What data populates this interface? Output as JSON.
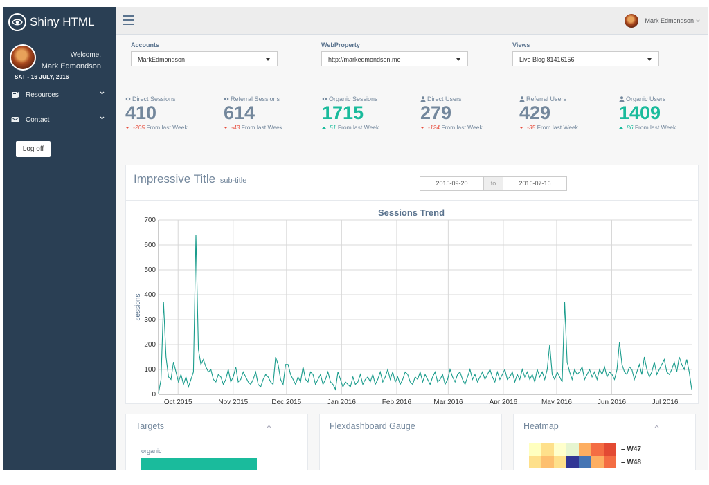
{
  "app": {
    "title": "Shiny HTML"
  },
  "sidebar": {
    "welcome": "Welcome,",
    "user_name": "Mark Edmondson",
    "date": "SAT - 16 JULY, 2016",
    "items": [
      {
        "label": "Resources"
      },
      {
        "label": "Contact"
      }
    ],
    "logoff_label": "Log off"
  },
  "topbar": {
    "user_name": "Mark Edmondson"
  },
  "selectors": {
    "accounts": {
      "label": "Accounts",
      "value": "MarkEdmondson"
    },
    "webproperty": {
      "label": "WebProperty",
      "value": "http://markedmondson.me"
    },
    "views": {
      "label": "Views",
      "value": "Live Blog 81416156"
    }
  },
  "stats": [
    {
      "title": "Direct Sessions",
      "icon": "eye-icon",
      "value": "410",
      "delta": "-205",
      "dir": "down",
      "suffix": "From last Week",
      "highlight": false
    },
    {
      "title": "Referral Sessions",
      "icon": "eye-icon",
      "value": "614",
      "delta": "-43",
      "dir": "down",
      "suffix": "From last Week",
      "highlight": false
    },
    {
      "title": "Organic Sessions",
      "icon": "eye-icon",
      "value": "1715",
      "delta": "51",
      "dir": "up",
      "suffix": "From last Week",
      "highlight": true
    },
    {
      "title": "Direct Users",
      "icon": "user-icon",
      "value": "279",
      "delta": "-124",
      "dir": "down",
      "suffix": "From last Week",
      "highlight": false
    },
    {
      "title": "Referral Users",
      "icon": "user-icon",
      "value": "429",
      "delta": "-35",
      "dir": "down",
      "suffix": "From last Week",
      "highlight": false
    },
    {
      "title": "Organic Users",
      "icon": "user-icon",
      "value": "1409",
      "delta": "86",
      "dir": "up",
      "suffix": "From last Week",
      "highlight": true
    }
  ],
  "panel": {
    "title": "Impressive Title",
    "subtitle": "sub-title",
    "date_from": "2015-09-20",
    "date_to": "2016-07-16",
    "to_label": "to"
  },
  "chart_data": {
    "type": "line",
    "title": "Sessions Trend",
    "xlabel": "",
    "ylabel": "sessions",
    "ylim": [
      0,
      700
    ],
    "yticks": [
      0,
      100,
      200,
      300,
      400,
      500,
      600,
      700
    ],
    "xticks": [
      "Oct 2015",
      "Nov 2015",
      "Dec 2015",
      "Jan 2016",
      "Feb 2016",
      "Mar 2016",
      "Apr 2016",
      "May 2016",
      "Jun 2016",
      "Jul 2016"
    ],
    "start_date": "2015-09-20",
    "end_date": "2016-07-16",
    "line_color": "#1a9c8c",
    "series": [
      {
        "name": "sessions",
        "values": [
          5,
          60,
          370,
          150,
          70,
          60,
          130,
          90,
          50,
          80,
          40,
          70,
          30,
          60,
          90,
          640,
          180,
          120,
          140,
          110,
          90,
          100,
          60,
          50,
          80,
          70,
          40,
          60,
          100,
          50,
          70,
          110,
          50,
          60,
          90,
          70,
          50,
          40,
          60,
          90,
          40,
          30,
          60,
          80,
          70,
          50,
          40,
          150,
          120,
          60,
          40,
          120,
          120,
          80,
          60,
          40,
          70,
          50,
          110,
          60,
          50,
          90,
          80,
          40,
          60,
          80,
          40,
          60,
          90,
          50,
          40,
          20,
          90,
          60,
          30,
          50,
          40,
          30,
          70,
          40,
          50,
          80,
          40,
          60,
          70,
          50,
          80,
          40,
          60,
          90,
          50,
          70,
          100,
          60,
          90,
          50,
          70,
          40,
          60,
          90,
          80,
          50,
          40,
          70,
          60,
          90,
          50,
          80,
          60,
          40,
          70,
          90,
          50,
          60,
          80,
          40,
          60,
          100,
          70,
          50,
          80,
          90,
          60,
          40,
          70,
          100,
          60,
          80,
          50,
          70,
          90,
          60,
          80,
          100,
          70,
          50,
          90,
          60,
          80,
          100,
          60,
          70,
          90,
          50,
          80,
          60,
          100,
          70,
          90,
          60,
          80,
          50,
          100,
          70,
          90,
          60,
          100,
          200,
          80,
          60,
          90,
          70,
          50,
          370,
          130,
          90,
          60,
          100,
          80,
          90,
          110,
          60,
          80,
          100,
          70,
          90,
          60,
          100,
          80,
          110,
          70,
          90,
          80,
          60,
          100,
          210,
          120,
          90,
          80,
          110,
          100,
          60,
          90,
          120,
          80,
          150,
          100,
          70,
          90,
          130,
          80,
          100,
          120,
          140,
          90,
          80,
          100,
          130,
          90,
          150,
          120,
          100,
          140,
          90,
          20
        ]
      }
    ]
  },
  "cards": {
    "targets": {
      "title": "Targets",
      "label": "organic",
      "value": 0.56
    },
    "gauge": {
      "title": "Flexdashboard Gauge"
    },
    "heatmap": {
      "title": "Heatmap",
      "rows": [
        "W47",
        "W48"
      ]
    }
  },
  "colors": {
    "sidebar": "#2a3f54",
    "accent": "#1abb9c",
    "negative": "#e74c3c",
    "text": "#73879c"
  }
}
